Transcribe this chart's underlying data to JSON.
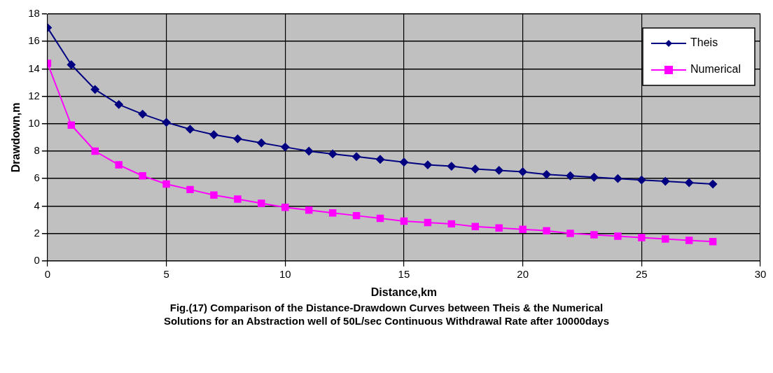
{
  "chart_data": {
    "type": "line",
    "xlabel": "Distance,km",
    "ylabel": "Drawdown,m",
    "annotations": [
      "Fig.(17) Comparison of the Distance-Drawdown Curves between Theis & the Numerical Solutions for an  Abstraction well of 50L/sec Continuous Withdrawal Rate after 10000days"
    ],
    "x": [
      0,
      1,
      2,
      3,
      4,
      5,
      6,
      7,
      8,
      9,
      10,
      11,
      12,
      13,
      14,
      15,
      16,
      17,
      18,
      19,
      20,
      21,
      22,
      23,
      24,
      25,
      26,
      27,
      28
    ],
    "series": [
      {
        "name": "Theis",
        "color": "#000080",
        "marker": "diamond",
        "values": [
          17,
          14.3,
          12.5,
          11.4,
          10.7,
          10.1,
          9.6,
          9.2,
          8.9,
          8.6,
          8.3,
          8.0,
          7.8,
          7.6,
          7.4,
          7.2,
          7.0,
          6.9,
          6.7,
          6.6,
          6.5,
          6.3,
          6.2,
          6.1,
          6.0,
          5.9,
          5.8,
          5.7,
          5.6
        ]
      },
      {
        "name": "Numerical",
        "color": "#ff00ff",
        "marker": "square",
        "values": [
          14.4,
          9.9,
          8.0,
          7.0,
          6.2,
          5.6,
          5.2,
          4.8,
          4.5,
          4.2,
          3.9,
          3.7,
          3.5,
          3.3,
          3.1,
          2.9,
          2.8,
          2.7,
          2.5,
          2.4,
          2.3,
          2.2,
          2.0,
          1.9,
          1.8,
          1.7,
          1.6,
          1.5,
          1.4
        ]
      }
    ],
    "xlim": [
      0,
      30
    ],
    "xticks": [
      0,
      5,
      10,
      15,
      20,
      25,
      30
    ],
    "ylim": [
      0,
      18
    ],
    "yticks": [
      0,
      2,
      4,
      6,
      8,
      10,
      12,
      14,
      16,
      18
    ],
    "grid": true,
    "legend": "top right"
  }
}
